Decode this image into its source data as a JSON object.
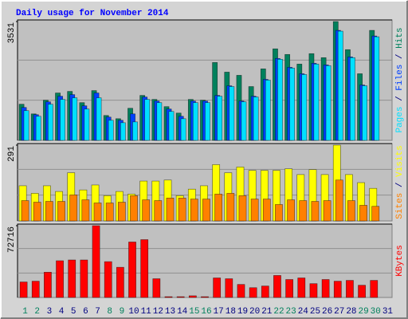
{
  "chart_data": [
    {
      "type": "bar",
      "title": "Daily usage for November 2014",
      "categories": [
        "1",
        "2",
        "3",
        "4",
        "5",
        "6",
        "7",
        "8",
        "9",
        "10",
        "11",
        "12",
        "13",
        "14",
        "15",
        "16",
        "17",
        "18",
        "19",
        "20",
        "21",
        "22",
        "23",
        "24",
        "25",
        "26",
        "27",
        "28",
        "29",
        "30",
        "31"
      ],
      "category_colors": [
        "#00805c",
        "#00805c",
        "#000080",
        "#000080",
        "#000080",
        "#000080",
        "#000080",
        "#00805c",
        "#00805c",
        "#000080",
        "#000080",
        "#000080",
        "#000080",
        "#000080",
        "#00805c",
        "#00805c",
        "#000080",
        "#000080",
        "#000080",
        "#000080",
        "#000080",
        "#00805c",
        "#00805c",
        "#000080",
        "#000080",
        "#000080",
        "#000080",
        "#000080",
        "#00805c",
        "#00805c",
        "#000080"
      ],
      "legend_separator": " / ",
      "ylim": [
        0,
        3531
      ],
      "yticks": [
        3531
      ],
      "series": [
        {
          "name": "Hits",
          "color": "#00805c",
          "values": [
            1074,
            787,
            1193,
            1408,
            1455,
            1121,
            1479,
            740,
            644,
            954,
            1336,
            1217,
            1002,
            811,
            1217,
            1193,
            2314,
            2028,
            1933,
            1599,
            2124,
            2720,
            2553,
            2267,
            2577,
            2458,
            3531,
            2696,
            1980,
            3269,
            null
          ]
        },
        {
          "name": "Files",
          "color": "#0040ff",
          "values": [
            978,
            764,
            1145,
            1312,
            1360,
            1026,
            1408,
            692,
            597,
            787,
            1288,
            1169,
            931,
            716,
            1169,
            1169,
            1336,
            1622,
            1169,
            1312,
            1813,
            2434,
            2171,
            1980,
            2291,
            2243,
            3269,
            2481,
            1646,
            3102,
            null
          ]
        },
        {
          "name": "Pages",
          "color": "#00e0ff",
          "values": [
            883,
            716,
            1074,
            1217,
            1265,
            931,
            1265,
            597,
            525,
            549,
            1217,
            1121,
            859,
            644,
            1121,
            1121,
            1312,
            1599,
            1145,
            1288,
            1790,
            2410,
            2147,
            1956,
            2267,
            2219,
            3245,
            2458,
            1622,
            3078,
            null
          ]
        }
      ]
    },
    {
      "type": "bar",
      "legend_separator": " / ",
      "ylim": [
        0,
        291
      ],
      "yticks": [
        291
      ],
      "series": [
        {
          "name": "Visits",
          "color": "#ffff00",
          "values": [
            135,
            106,
            135,
            113,
            185,
            119,
            138,
            97,
            113,
            103,
            153,
            153,
            157,
            97,
            122,
            135,
            216,
            185,
            207,
            194,
            194,
            194,
            200,
            178,
            197,
            178,
            291,
            178,
            147,
            125,
            null
          ]
        },
        {
          "name": "Sites",
          "color": "#ff8000",
          "values": [
            78,
            72,
            75,
            75,
            100,
            81,
            69,
            69,
            72,
            97,
            81,
            78,
            88,
            88,
            84,
            84,
            103,
            106,
            97,
            84,
            84,
            63,
            81,
            78,
            75,
            78,
            157,
            78,
            60,
            56,
            null
          ]
        }
      ]
    },
    {
      "type": "bar",
      "ylim": [
        0,
        72716
      ],
      "yticks": [
        72716
      ],
      "series": [
        {
          "name": "KBytes",
          "color": "#ff0000",
          "values": [
            15700,
            16500,
            25600,
            37200,
            38000,
            38000,
            72716,
            36300,
            30600,
            56200,
            58600,
            19000,
            800,
            800,
            1700,
            800,
            19800,
            19000,
            13200,
            9900,
            11600,
            22300,
            18200,
            19800,
            14000,
            18200,
            16500,
            17300,
            12400,
            17300,
            null
          ]
        }
      ]
    }
  ]
}
